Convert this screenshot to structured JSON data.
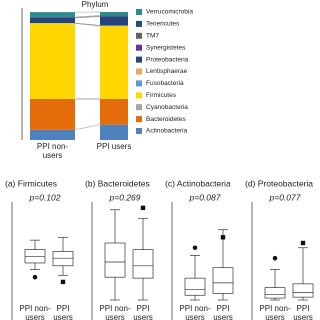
{
  "chart_data": [
    {
      "type": "stacked_bar",
      "title": "Phylum",
      "categories": [
        "PPI non-users",
        "PPI users"
      ],
      "ylim": [
        0,
        100
      ],
      "series": [
        {
          "name": "Actinobacteria",
          "color": "#4f81bd",
          "values": [
            8,
            12
          ]
        },
        {
          "name": "Bacteroidetes",
          "color": "#e46c0a",
          "values": [
            24,
            20
          ]
        },
        {
          "name": "Cyanobacteria",
          "color": "#a5a5a5",
          "values": [
            0.1,
            0.1
          ]
        },
        {
          "name": "Firmicutes",
          "color": "#ffd700",
          "values": [
            59,
            57
          ]
        },
        {
          "name": "Fusobacteria",
          "color": "#5b9bd5",
          "values": [
            0.2,
            0.3
          ]
        },
        {
          "name": "Lentisphaerae",
          "color": "#f4a460",
          "values": [
            0.1,
            0.1
          ]
        },
        {
          "name": "Proteobacteria",
          "color": "#264478",
          "values": [
            4,
            7
          ]
        },
        {
          "name": "Synergistetes",
          "color": "#7030a0",
          "values": [
            0.1,
            0.1
          ]
        },
        {
          "name": "TM7",
          "color": "#636363",
          "values": [
            0.1,
            0.1
          ]
        },
        {
          "name": "Tenericutes",
          "color": "#1f4e79",
          "values": [
            0.5,
            0.5
          ]
        },
        {
          "name": "Verrucomicrobia",
          "color": "#2e8b8b",
          "values": [
            3.8,
            2.8
          ]
        }
      ]
    },
    {
      "type": "boxplot",
      "title": "(a) Firmicutes",
      "annotation": "p=0.102",
      "categories": [
        "PPI non-users",
        "PPI users"
      ],
      "ylim": [
        0,
        100
      ],
      "boxes": [
        {
          "whisker_low": 32,
          "q1": 39,
          "median": 46,
          "q3": 53,
          "whisker_high": 63,
          "outliers": [
            24
          ]
        },
        {
          "whisker_low": 26,
          "q1": 36,
          "median": 44,
          "q3": 51,
          "whisker_high": 66,
          "outliers": [
            19
          ]
        }
      ]
    },
    {
      "type": "boxplot",
      "title": "(b) Bacteroidetes",
      "annotation": "p=0.269",
      "categories": [
        "PPI non-users",
        "PPI users"
      ],
      "ylim": [
        0,
        100
      ],
      "boxes": [
        {
          "whisker_low": 0,
          "q1": 24,
          "median": 40,
          "q3": 60,
          "whisker_high": 95,
          "outliers": []
        },
        {
          "whisker_low": 0,
          "q1": 23,
          "median": 36,
          "q3": 53,
          "whisker_high": 86,
          "outliers": [
            97
          ]
        }
      ]
    },
    {
      "type": "boxplot",
      "title": "(c) Actinobacteria",
      "annotation": "p=0.087",
      "categories": [
        "PPI non-users",
        "PPI users"
      ],
      "ylim": [
        0,
        100
      ],
      "boxes": [
        {
          "whisker_low": 0,
          "q1": 5,
          "median": 11,
          "q3": 23,
          "whisker_high": 47,
          "outliers": [
            55
          ]
        },
        {
          "whisker_low": 0,
          "q1": 7,
          "median": 18,
          "q3": 34,
          "whisker_high": 74,
          "outliers": [
            66
          ]
        }
      ]
    },
    {
      "type": "boxplot",
      "title": "(d) Proteobacteria",
      "annotation": "p=0.077",
      "categories": [
        "PPI non-users",
        "PPI users"
      ],
      "ylim": [
        0,
        100
      ],
      "boxes": [
        {
          "whisker_low": 0,
          "q1": 2,
          "median": 6,
          "q3": 13,
          "whisker_high": 32,
          "outliers": [
            44
          ]
        },
        {
          "whisker_low": 0,
          "q1": 3,
          "median": 8,
          "q3": 17,
          "whisker_high": 55,
          "outliers": [
            60
          ]
        }
      ]
    }
  ]
}
